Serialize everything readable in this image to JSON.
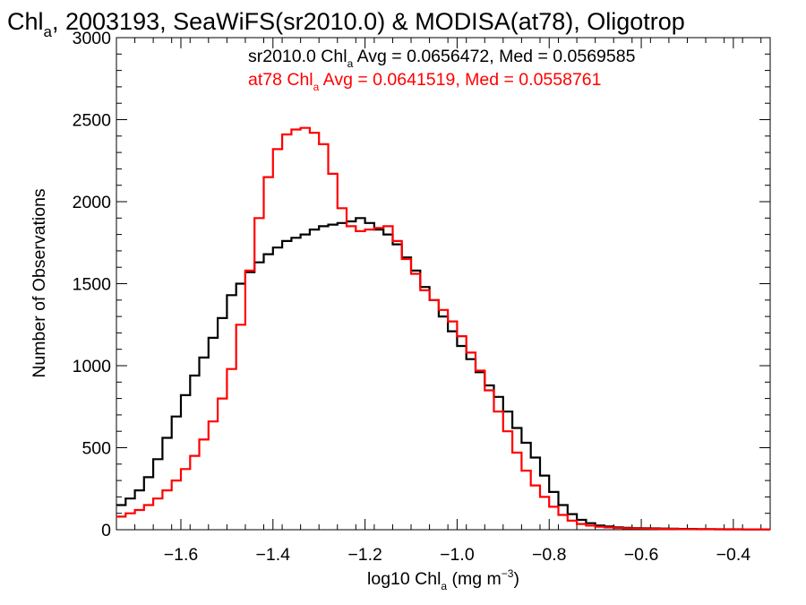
{
  "chart_data": {
    "type": "line",
    "title": {
      "main": "Chl",
      "sub": "a",
      "rest": ", 2003193, SeaWiFS(sr2010.0) & MODISA(at78), Oligotrop"
    },
    "xlabel": {
      "main": "log10 Chl",
      "sub": "a",
      "mid": " (mg m",
      "sup": "−3",
      "end": ")"
    },
    "ylabel": "Number of Observations",
    "xlim": [
      -1.74,
      -0.32
    ],
    "ylim": [
      0,
      3000
    ],
    "x_ticks": [
      -1.6,
      -1.4,
      -1.2,
      -1.0,
      -0.8,
      -0.6,
      -0.4
    ],
    "x_tick_labels": [
      "−1.6",
      "−1.4",
      "−1.2",
      "−1.0",
      "−0.8",
      "−0.6",
      "−0.4"
    ],
    "y_ticks": [
      0,
      500,
      1000,
      1500,
      2000,
      2500,
      3000
    ],
    "y_tick_labels": [
      "0",
      "500",
      "1000",
      "1500",
      "2000",
      "2500",
      "3000"
    ],
    "annotations": [
      {
        "pre": "sr2010.0 Chl",
        "sub": "a",
        "post": " Avg = 0.0656472, Med = 0.0569585",
        "color": "#000000"
      },
      {
        "pre": "at78 Chl",
        "sub": "a",
        "post": " Avg = 0.0641519, Med = 0.0558761",
        "color": "#ff0000"
      }
    ],
    "series": [
      {
        "color": "#000000",
        "x": [
          -1.74,
          -1.72,
          -1.7,
          -1.68,
          -1.66,
          -1.64,
          -1.62,
          -1.6,
          -1.58,
          -1.56,
          -1.54,
          -1.52,
          -1.5,
          -1.48,
          -1.46,
          -1.44,
          -1.42,
          -1.4,
          -1.38,
          -1.36,
          -1.34,
          -1.32,
          -1.3,
          -1.28,
          -1.26,
          -1.24,
          -1.22,
          -1.2,
          -1.18,
          -1.16,
          -1.14,
          -1.12,
          -1.1,
          -1.08,
          -1.06,
          -1.04,
          -1.02,
          -1.0,
          -0.98,
          -0.96,
          -0.94,
          -0.92,
          -0.9,
          -0.88,
          -0.86,
          -0.84,
          -0.82,
          -0.8,
          -0.78,
          -0.76,
          -0.74,
          -0.72,
          -0.7,
          -0.68,
          -0.66,
          -0.64,
          -0.62,
          -0.6,
          -0.58,
          -0.56,
          -0.54,
          -0.52,
          -0.5,
          -0.48,
          -0.46,
          -0.44,
          -0.42,
          -0.4,
          -0.38,
          -0.36,
          -0.34,
          -0.32
        ],
        "y": [
          150,
          190,
          240,
          320,
          430,
          560,
          690,
          820,
          940,
          1050,
          1170,
          1290,
          1430,
          1500,
          1570,
          1630,
          1680,
          1720,
          1760,
          1780,
          1800,
          1830,
          1850,
          1860,
          1870,
          1880,
          1900,
          1870,
          1830,
          1800,
          1740,
          1660,
          1580,
          1480,
          1400,
          1300,
          1210,
          1120,
          1040,
          960,
          880,
          810,
          720,
          620,
          530,
          440,
          330,
          230,
          150,
          95,
          60,
          40,
          25,
          20,
          15,
          12,
          10,
          9,
          8,
          7,
          6,
          5,
          5,
          4,
          4,
          3,
          3,
          3,
          2,
          2,
          2,
          2
        ]
      },
      {
        "color": "#ff0000",
        "x": [
          -1.74,
          -1.72,
          -1.7,
          -1.68,
          -1.66,
          -1.64,
          -1.62,
          -1.6,
          -1.58,
          -1.56,
          -1.54,
          -1.52,
          -1.5,
          -1.48,
          -1.46,
          -1.44,
          -1.42,
          -1.4,
          -1.38,
          -1.36,
          -1.34,
          -1.32,
          -1.3,
          -1.28,
          -1.26,
          -1.24,
          -1.22,
          -1.2,
          -1.18,
          -1.16,
          -1.14,
          -1.12,
          -1.1,
          -1.08,
          -1.06,
          -1.04,
          -1.02,
          -1.0,
          -0.98,
          -0.96,
          -0.94,
          -0.92,
          -0.9,
          -0.88,
          -0.86,
          -0.84,
          -0.82,
          -0.8,
          -0.78,
          -0.76,
          -0.74,
          -0.72,
          -0.7,
          -0.68,
          -0.66,
          -0.64,
          -0.62,
          -0.6,
          -0.58,
          -0.56,
          -0.54,
          -0.52,
          -0.5,
          -0.48,
          -0.46,
          -0.44,
          -0.42,
          -0.4,
          -0.38,
          -0.36,
          -0.34,
          -0.32
        ],
        "y": [
          80,
          100,
          120,
          150,
          190,
          240,
          300,
          370,
          450,
          550,
          660,
          800,
          980,
          1250,
          1580,
          1900,
          2150,
          2320,
          2410,
          2440,
          2450,
          2420,
          2350,
          2170,
          1960,
          1850,
          1820,
          1830,
          1840,
          1850,
          1760,
          1650,
          1560,
          1460,
          1400,
          1340,
          1270,
          1180,
          1080,
          970,
          850,
          720,
          600,
          470,
          360,
          270,
          200,
          140,
          90,
          55,
          35,
          25,
          18,
          14,
          11,
          9,
          8,
          7,
          6,
          5,
          5,
          4,
          4,
          3,
          3,
          3,
          2,
          2,
          2,
          2,
          2,
          2
        ]
      }
    ]
  }
}
